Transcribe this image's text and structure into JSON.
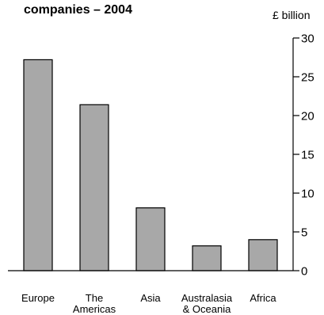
{
  "chart_data": {
    "type": "bar",
    "title": "companies – 2004",
    "unit_label": "£ billion",
    "categories": [
      [
        "Europe"
      ],
      [
        "The",
        "Americas"
      ],
      [
        "Asia"
      ],
      [
        "Australasia",
        "& Oceania"
      ],
      [
        "Africa"
      ]
    ],
    "values": [
      27.2,
      21.4,
      8.1,
      3.2,
      4.0
    ],
    "ylim": [
      0,
      30
    ],
    "yticks": [
      0,
      5,
      10,
      15,
      20,
      25,
      30
    ],
    "y_axis_side": "right",
    "bar_color": "#a8a8a8",
    "grid": false
  }
}
